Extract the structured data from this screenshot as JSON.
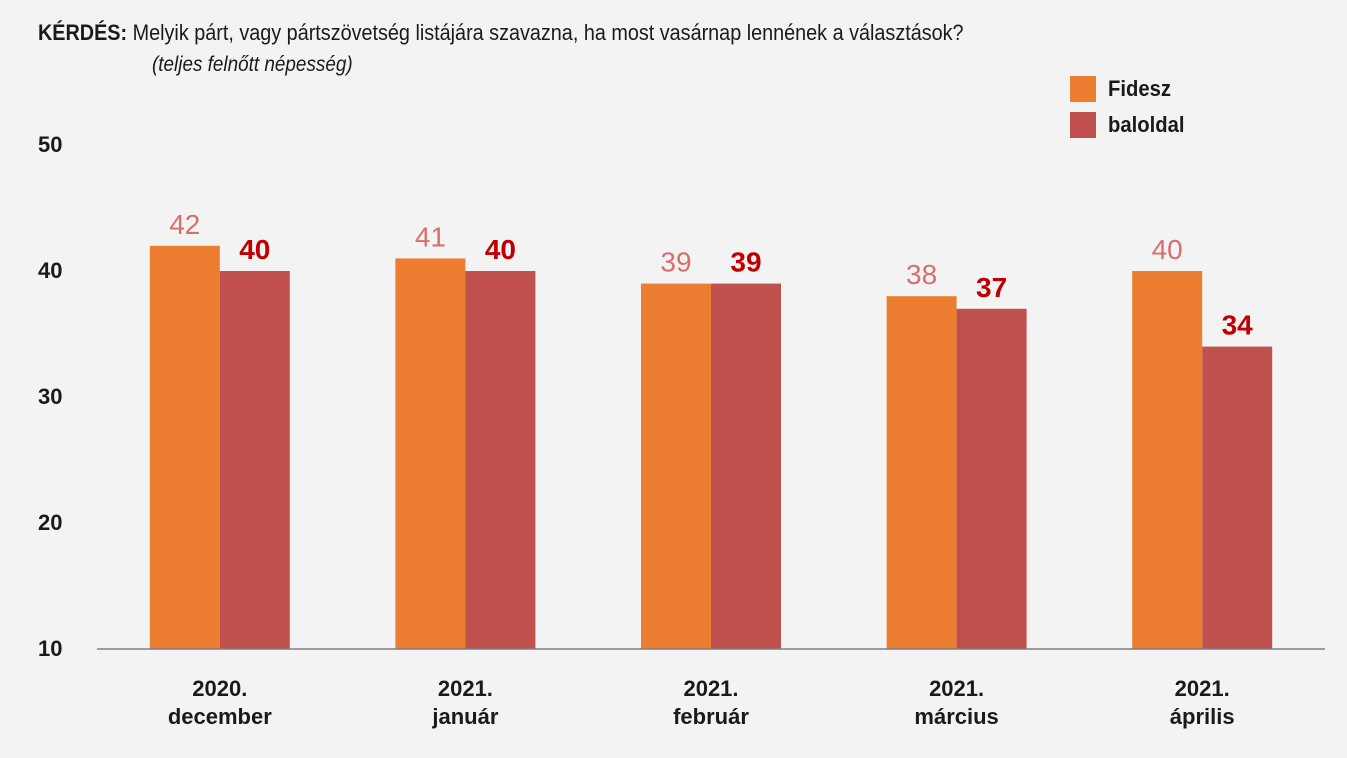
{
  "question": {
    "prefix": "KÉRDÉS:",
    "text": "Melyik párt, vagy pártszövetség listájára szavazna, ha most vasárnap lennének a választások?"
  },
  "subtitle": "(teljes felnőtt népesség)",
  "colors": {
    "background": "#f3f3f3",
    "fidesz": "#ed7d31",
    "baloldal": "#c0504d",
    "fidesz_label": "#d6706c",
    "baloldal_label": "#c00000",
    "axis": "#7f7f7f"
  },
  "chart_data": {
    "type": "bar",
    "categories": [
      [
        "2020.",
        "december"
      ],
      [
        "2021.",
        "január"
      ],
      [
        "2021.",
        "február"
      ],
      [
        "2021.",
        "március"
      ],
      [
        "2021.",
        "április"
      ]
    ],
    "series": [
      {
        "name": "Fidesz",
        "values": [
          42,
          41,
          39,
          38,
          40
        ]
      },
      {
        "name": "baloldal",
        "values": [
          40,
          40,
          39,
          37,
          34
        ]
      }
    ],
    "yticks": [
      "10",
      "20",
      "30",
      "40",
      "50"
    ],
    "ylim": [
      10,
      50
    ],
    "grid": false,
    "legend_position": "top-right",
    "data_labels": true
  }
}
